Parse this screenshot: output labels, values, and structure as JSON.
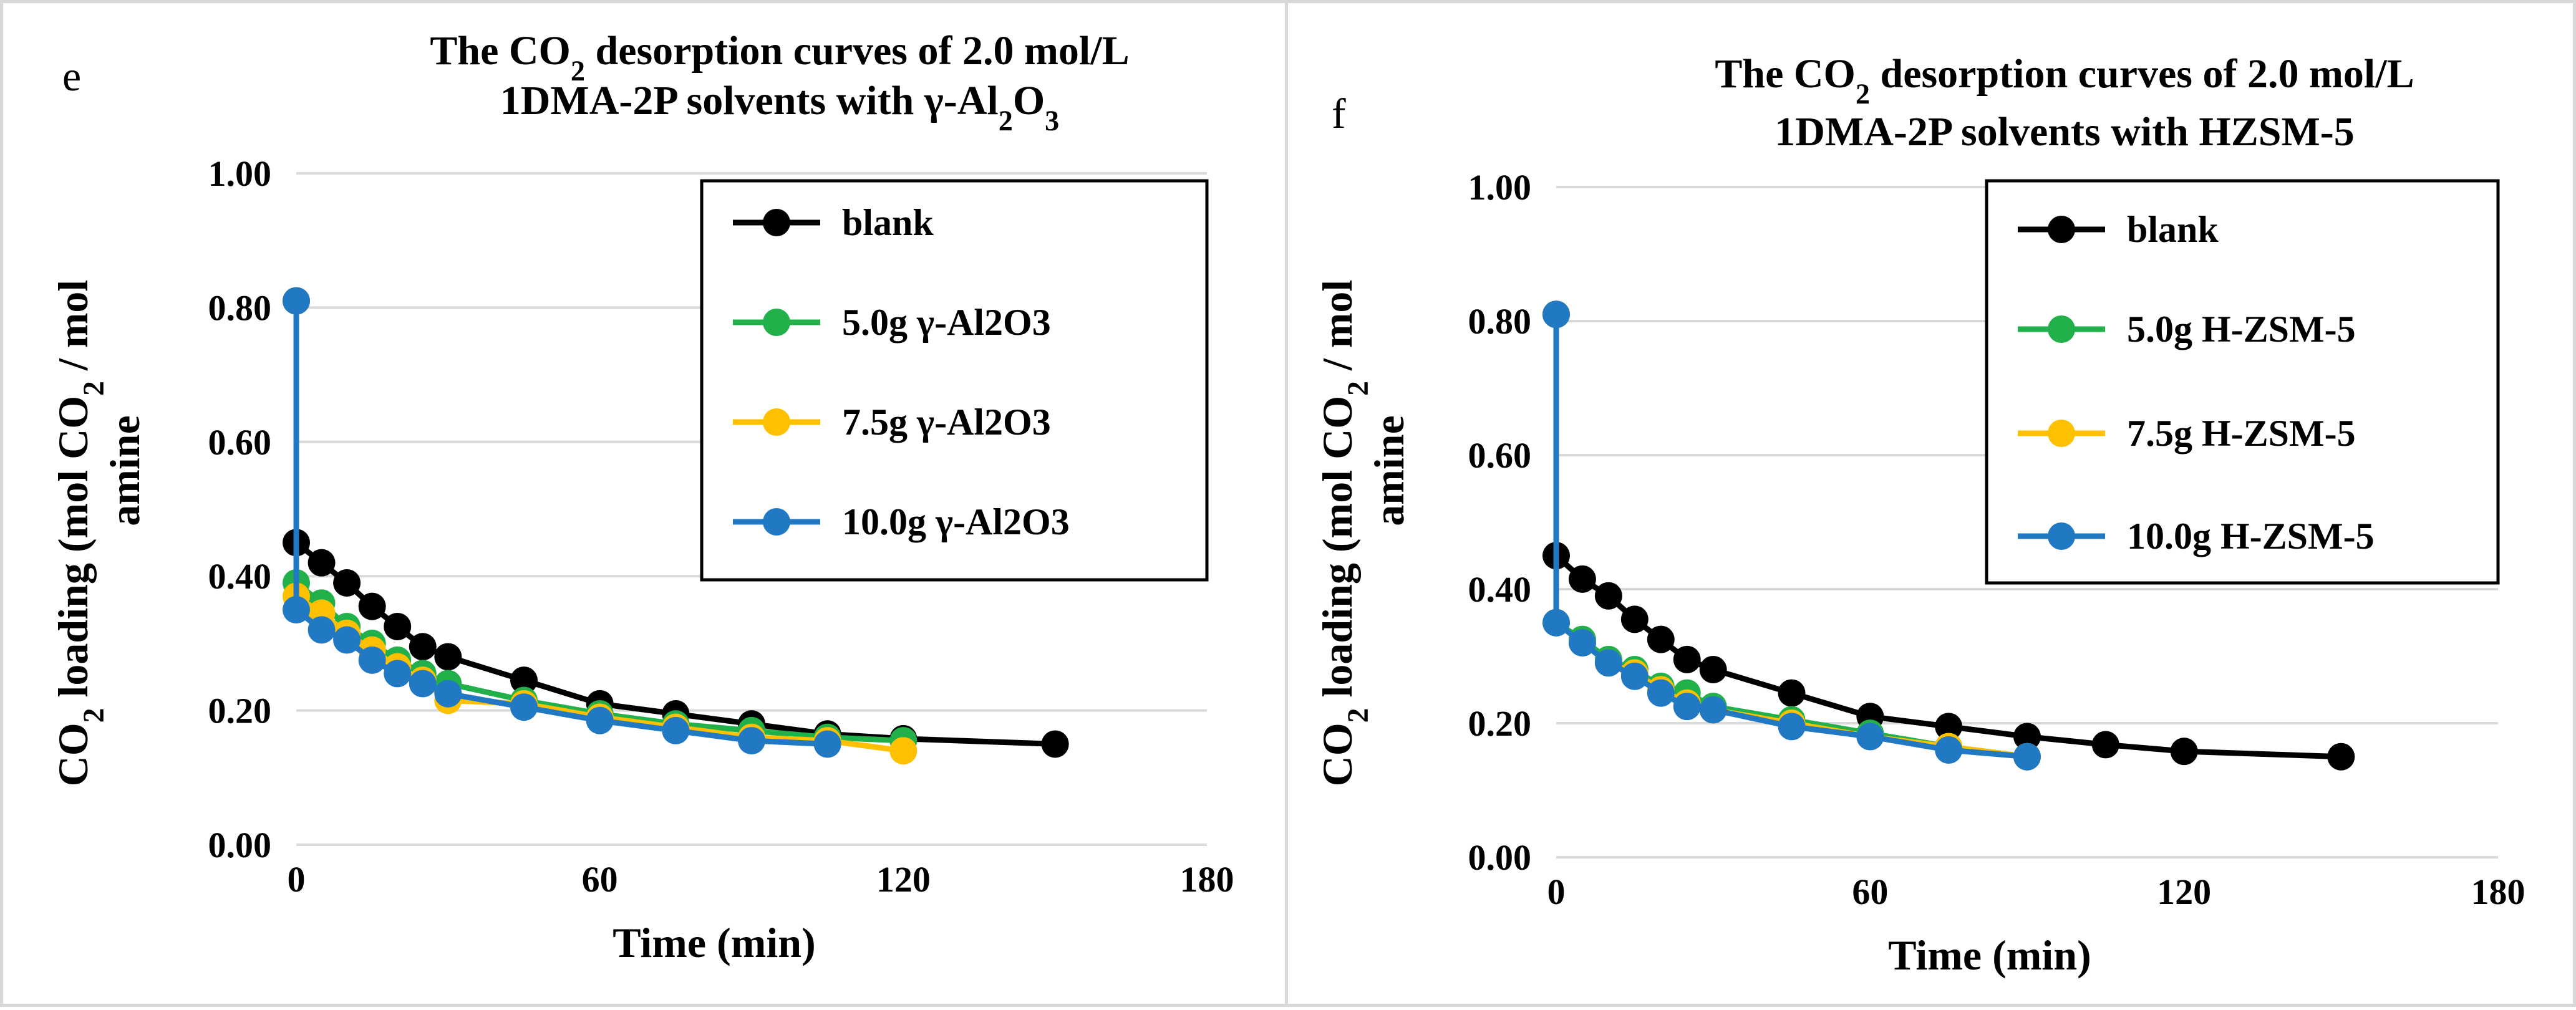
{
  "chart_data": [
    {
      "id": "e",
      "type": "line",
      "panel_label": "e",
      "title_parts": [
        "The CO",
        "2",
        " desorption curves of 2.0 mol/L"
      ],
      "title_line2_parts": [
        "1DMA-2P solvents with γ-Al",
        "2",
        "O",
        "3"
      ],
      "xlabel": "Time (min)",
      "ylabel_parts": [
        "CO",
        "2",
        " loading (mol CO",
        "2",
        " / mol"
      ],
      "ylabel_line2": "amine",
      "xlim": [
        0,
        180
      ],
      "ylim": [
        0,
        1.0
      ],
      "xticks": [
        "0",
        "60",
        "120",
        "180"
      ],
      "yticks": [
        "0.00",
        "0.20",
        "0.40",
        "0.60",
        "0.80",
        "1.00"
      ],
      "grid": true,
      "legend_position": "top-right",
      "series": [
        {
          "name": "blank",
          "color": "#000000",
          "x": [
            0,
            0,
            5,
            10,
            15,
            20,
            25,
            30,
            45,
            60,
            75,
            90,
            105,
            120,
            150
          ],
          "y": [
            0.81,
            0.45,
            0.42,
            0.39,
            0.355,
            0.325,
            0.295,
            0.28,
            0.245,
            0.21,
            0.195,
            0.18,
            0.165,
            0.158,
            0.15
          ]
        },
        {
          "name": "5.0g γ-Al2O3",
          "color": "#22b04b",
          "x": [
            0,
            0,
            5,
            10,
            15,
            20,
            25,
            30,
            45,
            60,
            75,
            90,
            105,
            120
          ],
          "y": [
            0.81,
            0.39,
            0.36,
            0.325,
            0.3,
            0.275,
            0.255,
            0.24,
            0.215,
            0.195,
            0.18,
            0.17,
            0.16,
            0.155
          ]
        },
        {
          "name": "7.5g γ-Al2O3",
          "color": "#ffc000",
          "x": [
            0,
            0,
            5,
            10,
            15,
            20,
            25,
            30,
            45,
            60,
            75,
            90,
            105,
            120
          ],
          "y": [
            0.81,
            0.37,
            0.345,
            0.315,
            0.29,
            0.265,
            0.245,
            0.215,
            0.21,
            0.19,
            0.175,
            0.16,
            0.155,
            0.14
          ]
        },
        {
          "name": "10.0g γ-Al2O3",
          "color": "#2079c2",
          "x": [
            0,
            0,
            5,
            10,
            15,
            20,
            25,
            30,
            45,
            60,
            75,
            90,
            105
          ],
          "y": [
            0.81,
            0.35,
            0.32,
            0.305,
            0.275,
            0.255,
            0.24,
            0.225,
            0.205,
            0.185,
            0.17,
            0.155,
            0.15
          ]
        }
      ]
    },
    {
      "id": "f",
      "type": "line",
      "panel_label": "f",
      "title_parts": [
        "The CO",
        "2",
        " desorption curves of 2.0 mol/L"
      ],
      "title_line2_parts": [
        "1DMA-2P solvents with HZSM-5"
      ],
      "xlabel": "Time (min)",
      "ylabel_parts": [
        "CO",
        "2",
        " loading (mol CO",
        "2",
        " / mol"
      ],
      "ylabel_line2": "amine",
      "xlim": [
        0,
        180
      ],
      "ylim": [
        0,
        1.0
      ],
      "xticks": [
        "0",
        "60",
        "120",
        "180"
      ],
      "yticks": [
        "0.00",
        "0.20",
        "0.40",
        "0.60",
        "0.80",
        "1.00"
      ],
      "grid": true,
      "legend_position": "top-right",
      "series": [
        {
          "name": "blank",
          "color": "#000000",
          "x": [
            0,
            0,
            5,
            10,
            15,
            20,
            25,
            30,
            45,
            60,
            75,
            90,
            105,
            120,
            150
          ],
          "y": [
            0.81,
            0.45,
            0.415,
            0.39,
            0.355,
            0.325,
            0.295,
            0.28,
            0.245,
            0.21,
            0.195,
            0.18,
            0.168,
            0.158,
            0.15
          ]
        },
        {
          "name": "5.0g H-ZSM-5",
          "color": "#22b04b",
          "x": [
            0,
            0,
            5,
            10,
            15,
            20,
            25,
            30,
            45,
            60,
            75,
            90
          ],
          "y": [
            0.81,
            0.35,
            0.325,
            0.295,
            0.28,
            0.255,
            0.245,
            0.225,
            0.205,
            0.185,
            0.165,
            0.15
          ]
        },
        {
          "name": "7.5g H-ZSM-5",
          "color": "#ffc000",
          "x": [
            0,
            0,
            5,
            10,
            15,
            20,
            25,
            30,
            45,
            60,
            75,
            90
          ],
          "y": [
            0.81,
            0.35,
            0.32,
            0.29,
            0.275,
            0.25,
            0.23,
            0.22,
            0.2,
            0.18,
            0.165,
            0.15
          ]
        },
        {
          "name": "10.0g H-ZSM-5",
          "color": "#2079c2",
          "x": [
            0,
            0,
            5,
            10,
            15,
            20,
            25,
            30,
            45,
            60,
            75,
            90
          ],
          "y": [
            0.81,
            0.35,
            0.32,
            0.29,
            0.27,
            0.245,
            0.225,
            0.22,
            0.195,
            0.18,
            0.16,
            0.15
          ]
        }
      ]
    }
  ]
}
